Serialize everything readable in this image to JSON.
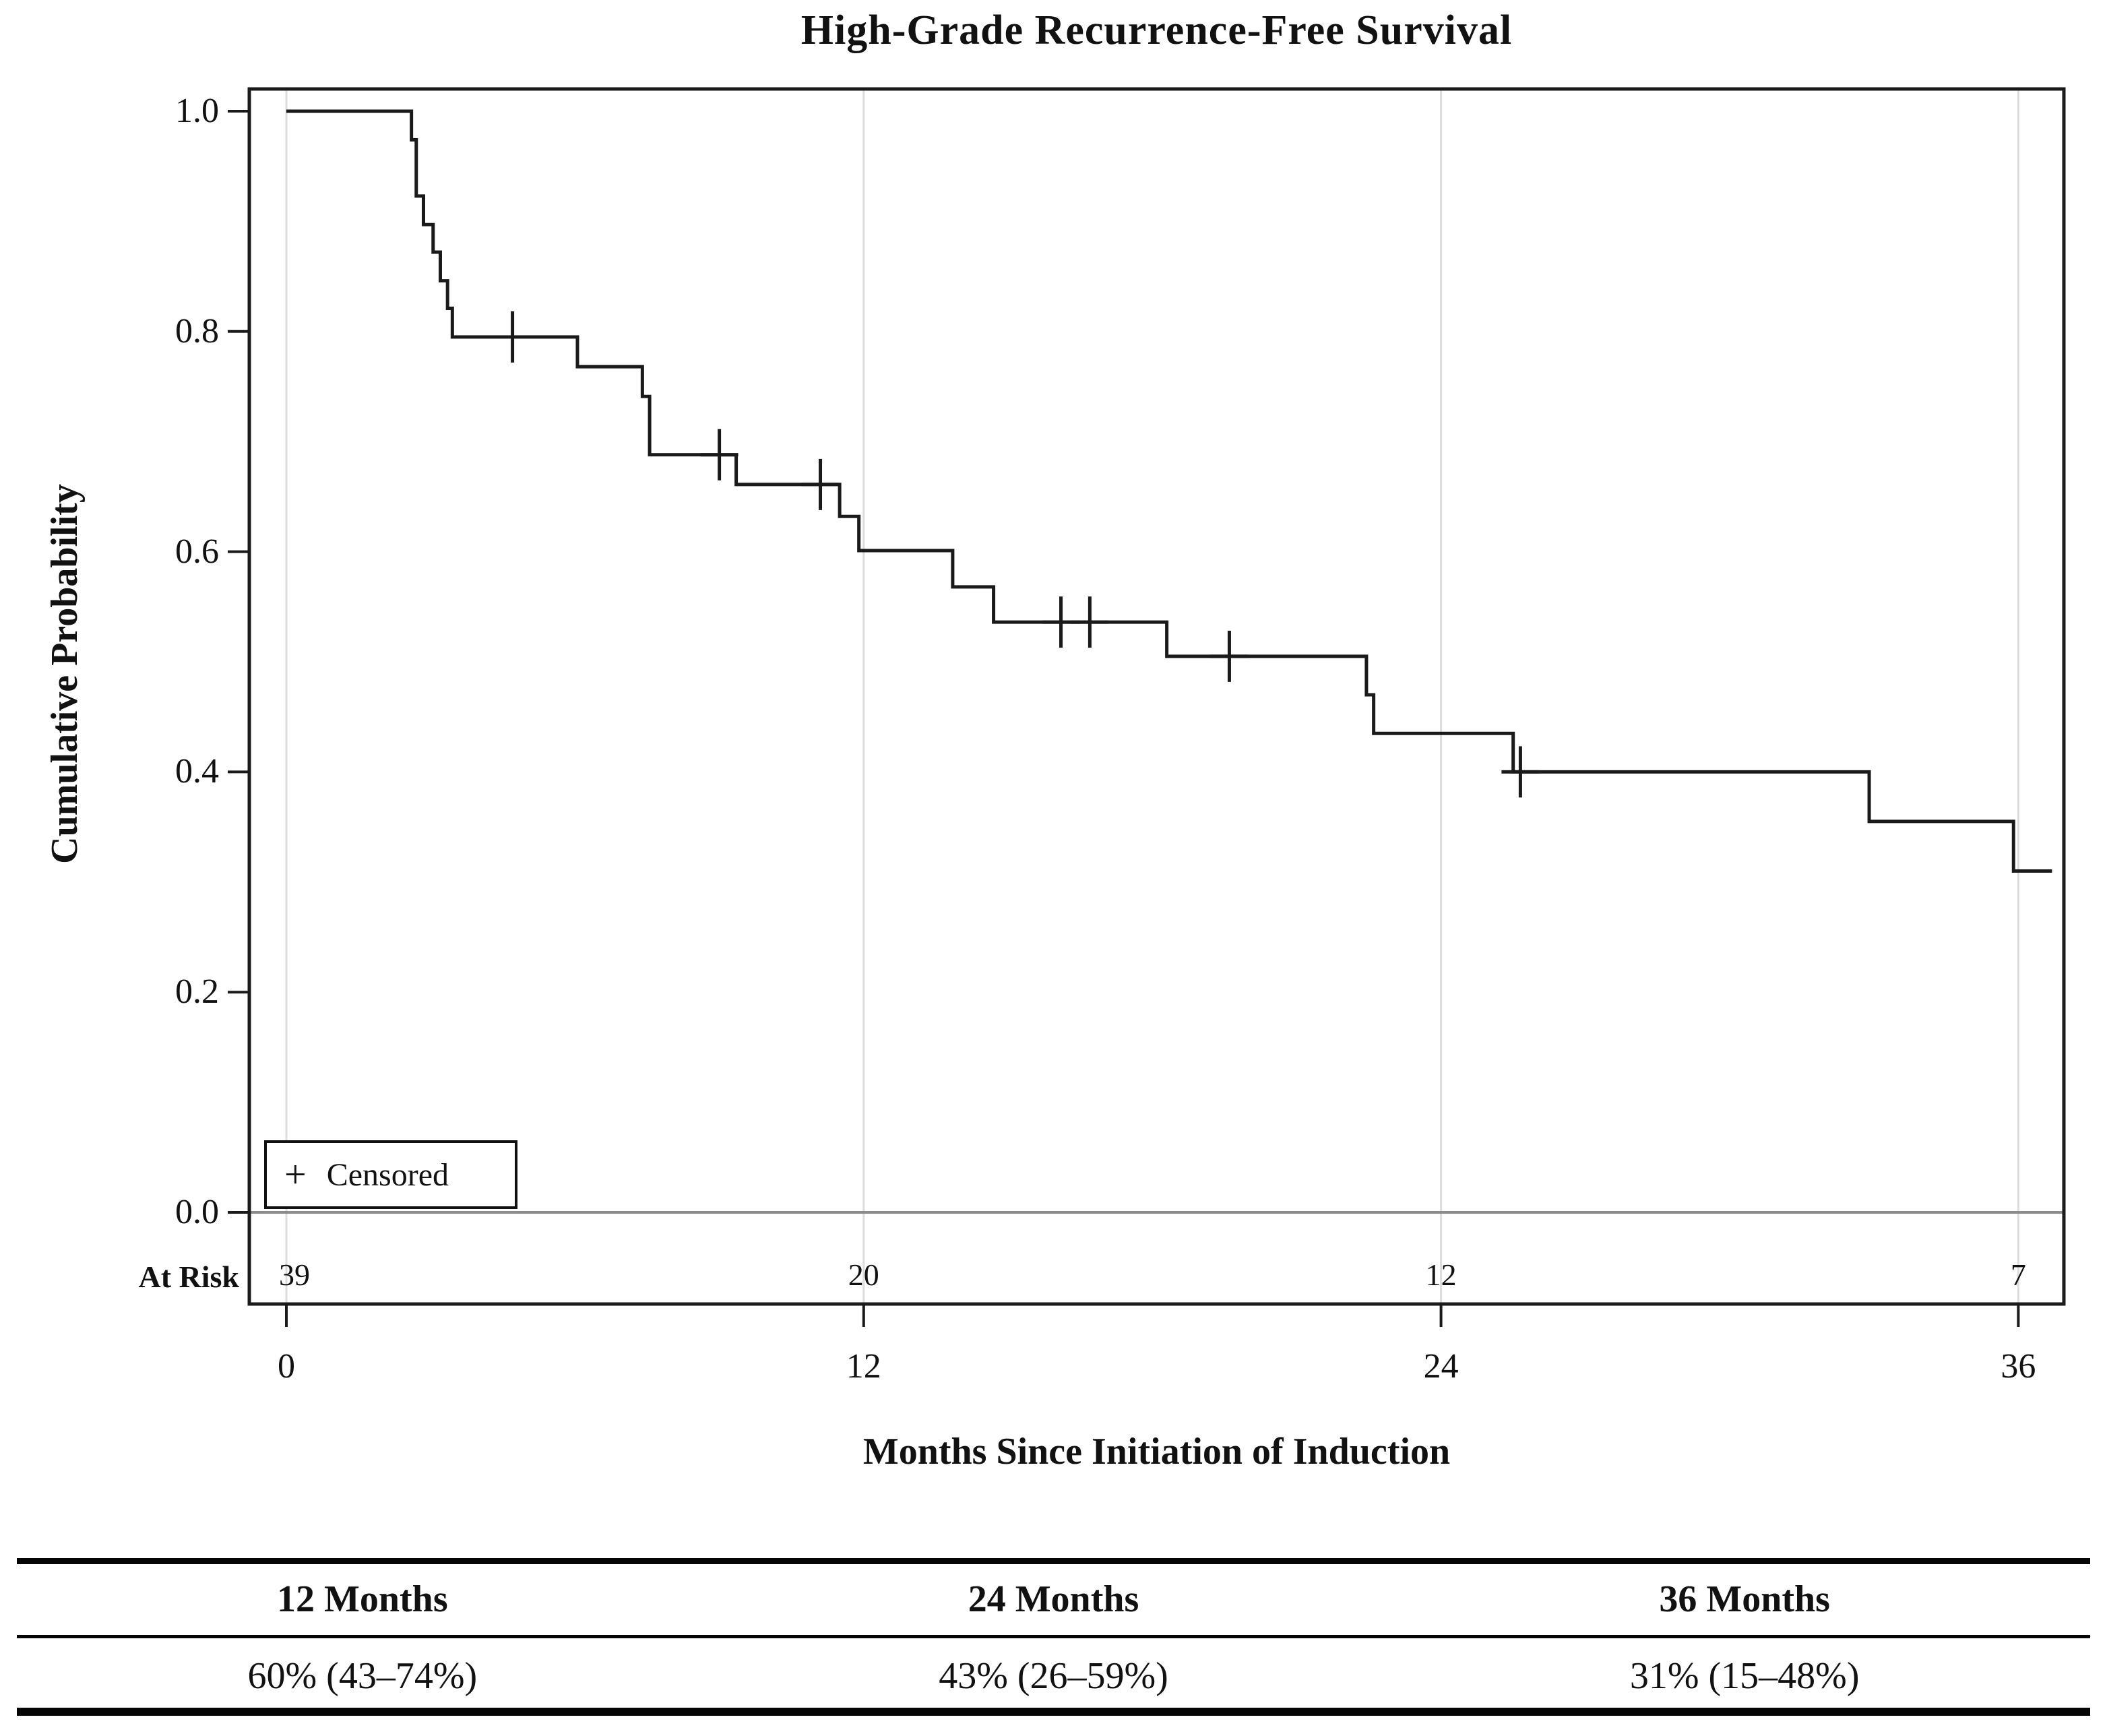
{
  "title": "High-Grade Recurrence-Free Survival",
  "legend": {
    "marker": "+",
    "label": "Censored"
  },
  "axes": {
    "x": {
      "label": "Months Since Initiation of Induction",
      "ticks": [
        "0",
        "12",
        "24",
        "36"
      ],
      "tick_values": [
        0,
        12,
        24,
        36
      ]
    },
    "y": {
      "label": "Cumulative Probability",
      "ticks": [
        "1.0",
        "0.8",
        "0.6",
        "0.4",
        "0.2",
        "0.0"
      ],
      "tick_values": [
        1.0,
        0.8,
        0.6,
        0.4,
        0.2,
        0.0
      ]
    }
  },
  "at_risk": {
    "label": "At Risk",
    "months": [
      0,
      12,
      24,
      36
    ],
    "counts": [
      "39",
      "20",
      "12",
      "7"
    ]
  },
  "chart_data": {
    "type": "line",
    "subtype": "kaplan-meier-step-curve",
    "title": "High-Grade Recurrence-Free Survival",
    "xlabel": "Months Since Initiation of Induction",
    "ylabel": "Cumulative Probability",
    "xlim": [
      -0.8,
      37.0
    ],
    "ylim": [
      -0.08,
      1.02
    ],
    "grid_x_months": [
      0,
      12,
      24,
      36
    ],
    "zero_reference_line": 0.0,
    "series": [
      {
        "name": "High-grade recurrence-free survival",
        "steps": [
          [
            0,
            1.0
          ],
          [
            2.6,
            0.974
          ],
          [
            2.7,
            0.923
          ],
          [
            2.85,
            0.897
          ],
          [
            3.05,
            0.872
          ],
          [
            3.2,
            0.846
          ],
          [
            3.35,
            0.821
          ],
          [
            3.45,
            0.795
          ],
          [
            6.05,
            0.768
          ],
          [
            7.4,
            0.741
          ],
          [
            7.55,
            0.688
          ],
          [
            9.35,
            0.661
          ],
          [
            11.5,
            0.632
          ],
          [
            11.9,
            0.601
          ],
          [
            13.85,
            0.568
          ],
          [
            14.7,
            0.536
          ],
          [
            18.3,
            0.505
          ],
          [
            22.45,
            0.47
          ],
          [
            22.6,
            0.435
          ],
          [
            25.5,
            0.4
          ],
          [
            32.9,
            0.355
          ],
          [
            35.9,
            0.31
          ]
        ],
        "end_x": 36.7,
        "censored": [
          [
            4.7,
            0.795
          ],
          [
            9.0,
            0.688
          ],
          [
            11.1,
            0.661
          ],
          [
            16.1,
            0.536
          ],
          [
            16.7,
            0.536
          ],
          [
            19.6,
            0.505
          ],
          [
            25.65,
            0.4
          ]
        ]
      }
    ],
    "at_risk_counts": {
      "0": 39,
      "12": 20,
      "24": 12,
      "36": 7
    },
    "estimates": [
      {
        "time_label": "12 Months",
        "value": "60% (43–74%)"
      },
      {
        "time_label": "24 Months",
        "value": "43% (26–59%)"
      },
      {
        "time_label": "36 Months",
        "value": "31% (15–48%)"
      }
    ]
  },
  "summary_table": {
    "headers": [
      "12 Months",
      "24 Months",
      "36 Months"
    ],
    "values": [
      "60% (43–74%)",
      "43% (26–59%)",
      "31% (15–48%)"
    ]
  },
  "colors": {
    "curve": "#1a1a1a",
    "frame": "#1a1a1a",
    "grid": "#dcdcdc",
    "zero_line": "#8c8c8c",
    "text": "#111111",
    "background": "#ffffff"
  }
}
